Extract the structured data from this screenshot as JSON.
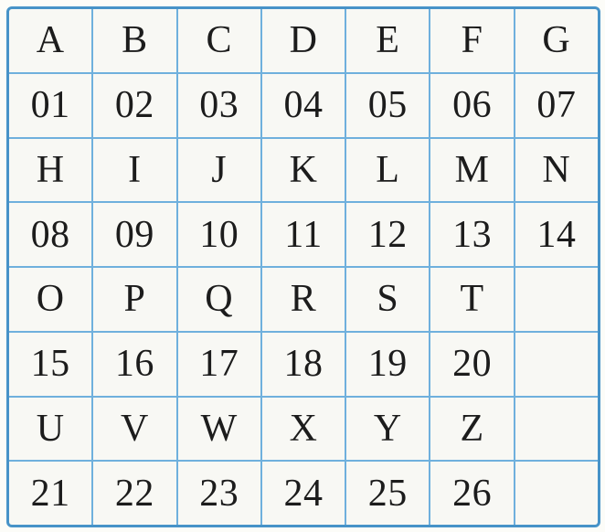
{
  "page": {
    "background_color": "#fcfcf8",
    "description": "Scanned printed cipher lookup table mapping letters A-Z to numbers 01-26"
  },
  "table": {
    "outer_border_color": "#4793c8",
    "grid_line_color": "#6fb0dd",
    "cell_background_color": "#f8f8f4",
    "text_color": "#1c1c1c",
    "columns": 7,
    "rows_count": 8,
    "rows": [
      [
        "A",
        "B",
        "C",
        "D",
        "E",
        "F",
        "G"
      ],
      [
        "01",
        "02",
        "03",
        "04",
        "05",
        "06",
        "07"
      ],
      [
        "H",
        "I",
        "J",
        "K",
        "L",
        "M",
        "N"
      ],
      [
        "08",
        "09",
        "10",
        "11",
        "12",
        "13",
        "14"
      ],
      [
        "O",
        "P",
        "Q",
        "R",
        "S",
        "T",
        ""
      ],
      [
        "15",
        "16",
        "17",
        "18",
        "19",
        "20",
        ""
      ],
      [
        "U",
        "V",
        "W",
        "X",
        "Y",
        "Z",
        ""
      ],
      [
        "21",
        "22",
        "23",
        "24",
        "25",
        "26",
        ""
      ]
    ]
  }
}
